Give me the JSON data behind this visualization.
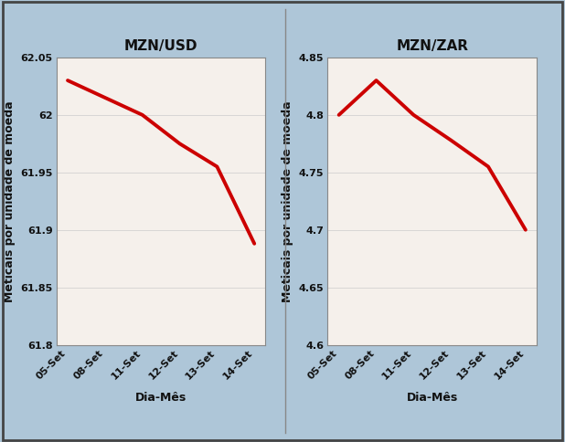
{
  "left_title": "MZN/USD",
  "right_title": "MZN/ZAR",
  "xlabel": "Dia-Mês",
  "ylabel": "Meticais por unidade de moeda",
  "x_labels": [
    "05-Set",
    "08-Set",
    "11-Set",
    "12-Set",
    "13-Set",
    "14-Set"
  ],
  "usd_values": [
    62.03,
    62.015,
    62.0,
    61.975,
    61.955,
    61.888
  ],
  "zar_values": [
    4.8,
    4.83,
    4.8,
    4.778,
    4.755,
    4.7
  ],
  "line_color": "#cc0000",
  "line_width": 2.8,
  "bg_outer": "#aec6d8",
  "bg_inner": "#f5f0eb",
  "border_color": "#444444",
  "usd_ylim": [
    61.8,
    62.05
  ],
  "usd_yticks": [
    61.8,
    61.85,
    61.9,
    61.95,
    62.0,
    62.05
  ],
  "zar_ylim": [
    4.6,
    4.85
  ],
  "zar_yticks": [
    4.6,
    4.65,
    4.7,
    4.75,
    4.8,
    4.85
  ],
  "title_fontsize": 11,
  "axis_label_fontsize": 9,
  "tick_fontsize": 8,
  "usd_ytick_labels": [
    "61.8",
    "61.85",
    "61.9",
    "61.95",
    "62",
    "62.05"
  ],
  "zar_ytick_labels": [
    "4.6",
    "4.65",
    "4.7",
    "4.75",
    "4.8",
    "4.85"
  ]
}
